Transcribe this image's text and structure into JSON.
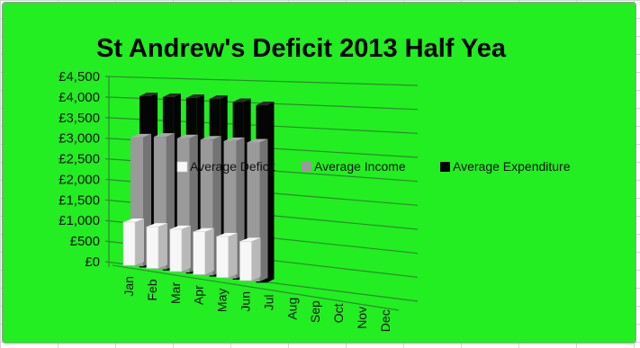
{
  "colors": {
    "background": "#22ee22",
    "grid_line": "#2e8a2e",
    "axis_text": "#111111",
    "series": [
      "#f7f7f7",
      "#9a9a9a",
      "#050505"
    ]
  },
  "chart_data": {
    "type": "bar",
    "variant": "3d-clustered-column",
    "title": "St Andrew's Deficit 2013 Half Yea",
    "categories": [
      "Jan",
      "Feb",
      "Mar",
      "Apr",
      "May",
      "Jun",
      "Jul",
      "Aug",
      "Sep",
      "Oct",
      "Nov",
      "Dec"
    ],
    "series": [
      {
        "name": "Average Deficit",
        "values": [
          1000,
          950,
          950,
          950,
          900,
          850,
          null,
          null,
          null,
          null,
          null,
          null
        ]
      },
      {
        "name": "Average Income",
        "values": [
          3050,
          3100,
          3100,
          3100,
          3100,
          3100,
          null,
          null,
          null,
          null,
          null,
          null
        ]
      },
      {
        "name": "Average Expenditure",
        "values": [
          4050,
          4050,
          4050,
          4050,
          4000,
          3950,
          null,
          null,
          null,
          null,
          null,
          null
        ]
      }
    ],
    "y_ticks": [
      "£0",
      "£500",
      "£1,000",
      "£1,500",
      "£2,000",
      "£2,500",
      "£3,000",
      "£3,500",
      "£4,000",
      "£4,500"
    ],
    "ylim": [
      0,
      4500
    ],
    "xlabel": "",
    "ylabel": "",
    "grid": true,
    "legend": "middle-right"
  }
}
